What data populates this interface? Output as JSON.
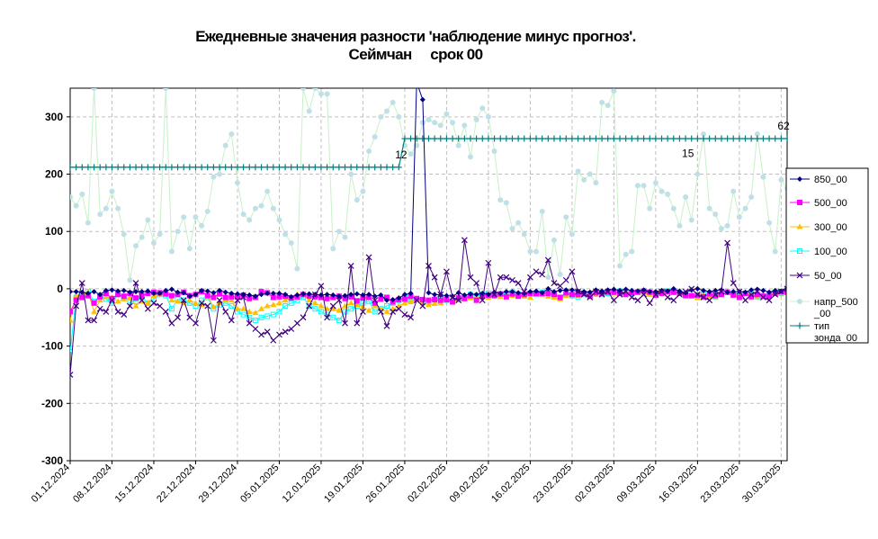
{
  "chart_data": {
    "type": "line",
    "title": "Ежедневные значения разности 'наблюдение минус прогноз'.",
    "subtitle": "Сеймчан     срок 00",
    "xlabel": "",
    "ylabel": "",
    "ylim": [
      -300,
      350
    ],
    "yticks": [
      -300,
      -200,
      -100,
      0,
      100,
      200,
      300
    ],
    "grid": true,
    "legend_position": "right",
    "x_start": "01.12.2024",
    "x_end": "31.03.2025",
    "x_ticks": [
      "01.12.2024",
      "08.12.2024",
      "15.12.2024",
      "22.12.2024",
      "29.12.2024",
      "05.01.2025",
      "12.01.2025",
      "19.01.2025",
      "26.01.2025",
      "02.02.2025",
      "09.02.2025",
      "16.02.2025",
      "23.02.2025",
      "02.03.2025",
      "09.03.2025",
      "16.03.2025",
      "23.03.2025",
      "30.03.2025"
    ],
    "annotations": [
      {
        "x": "26.01.2025",
        "y": 212,
        "text": "12"
      },
      {
        "x": "15.03.2025",
        "y": 214,
        "text": "15"
      },
      {
        "x": "31.03.2025",
        "y": 262,
        "text": "62"
      }
    ],
    "series": [
      {
        "name": "850_00",
        "color": "#000080",
        "marker": "diamond",
        "values": [
          -5,
          -5,
          -6,
          -8,
          -5,
          -10,
          -3,
          -2,
          -4,
          -3,
          -6,
          -5,
          -5,
          -4,
          -8,
          -8,
          -3,
          -1,
          -6,
          -7,
          -13,
          -10,
          -3,
          -4,
          -7,
          -3,
          -6,
          -8,
          -9,
          -10,
          -11,
          -13,
          -10,
          -8,
          -8,
          -8,
          -10,
          -14,
          -11,
          -9,
          -9,
          -10,
          -11,
          -10,
          -11,
          -13,
          -12,
          -10,
          -9,
          -11,
          -10,
          -13,
          -11,
          -20,
          -19,
          -16,
          -10,
          -8,
          360,
          330,
          -7,
          -10,
          -11,
          -12,
          -13,
          -7,
          -11,
          -9,
          -10,
          -8,
          -10,
          -6,
          -8,
          -5,
          -5,
          -7,
          -8,
          -5,
          -4,
          -7,
          0,
          -5,
          -3,
          -2,
          -2,
          -4,
          -5,
          -6,
          -2,
          -4,
          -2,
          -1,
          -3,
          -1,
          -3,
          -4,
          -2,
          -5,
          -5,
          -3,
          -4,
          0,
          -4,
          -7,
          -2,
          0,
          -3,
          -5,
          -3,
          -2,
          -6,
          -5,
          -5,
          -6,
          -2,
          -1,
          -3,
          -6,
          -3,
          -4,
          1,
          -2
        ]
      },
      {
        "name": "500_00",
        "color": "#ff00ff",
        "marker": "square",
        "values": [
          -40,
          -20,
          -15,
          -12,
          -25,
          -14,
          -8,
          -17,
          -10,
          -13,
          -8,
          -16,
          -12,
          -8,
          -6,
          -7,
          -9,
          -12,
          -10,
          -6,
          -12,
          -10,
          -5,
          -12,
          -15,
          -9,
          -15,
          -14,
          -14,
          -11,
          -17,
          -15,
          -5,
          -7,
          -15,
          -14,
          -13,
          -16,
          -14,
          -10,
          -13,
          -14,
          -15,
          -17,
          -15,
          -13,
          -17,
          -14,
          -21,
          -16,
          -15,
          -25,
          -18,
          -15,
          -23,
          -19,
          -18,
          -13,
          -17,
          -19,
          -20,
          -19,
          -20,
          -19,
          -23,
          -16,
          -17,
          -12,
          -20,
          -12,
          -11,
          -12,
          -9,
          -14,
          -9,
          -13,
          -10,
          -8,
          -8,
          -8,
          -8,
          -10,
          -15,
          -7,
          -10,
          -10,
          -8,
          -13,
          -7,
          -8,
          -6,
          -6,
          -8,
          -10,
          -7,
          -6,
          -4,
          -6,
          -11,
          -8,
          -5,
          -6,
          -8,
          -12,
          -12,
          -11,
          -14,
          -9,
          -12,
          -10,
          -6,
          -11,
          -15,
          -8,
          -14,
          -10,
          -13,
          -13,
          -8,
          -5,
          -6,
          -9
        ]
      },
      {
        "name": "300_00",
        "color": "#ffc000",
        "marker": "triangle",
        "values": [
          -55,
          -12,
          -10,
          -6,
          -40,
          -20,
          -14,
          -15,
          -22,
          -18,
          -15,
          -30,
          -22,
          -25,
          -12,
          -10,
          -8,
          -20,
          -22,
          -25,
          -20,
          -25,
          -28,
          -12,
          -32,
          -25,
          -20,
          -20,
          -35,
          -35,
          -40,
          -42,
          -35,
          -30,
          -28,
          -25,
          -20,
          -15,
          -10,
          -8,
          -20,
          -25,
          -30,
          -35,
          -35,
          -38,
          -30,
          -25,
          -28,
          -32,
          -38,
          -30,
          -35,
          -40,
          -35,
          -30,
          -25,
          -22,
          -18,
          -25,
          -28,
          -26,
          -25,
          -20,
          -22,
          -20,
          -18,
          -16,
          -15,
          -14,
          -15,
          -12,
          -14,
          -11,
          -12,
          -10,
          -12,
          -15,
          -10,
          -11,
          -13,
          -15,
          -18,
          -12,
          -10,
          -12,
          -8,
          -6,
          -10,
          -8,
          -5,
          -8,
          -6,
          -7,
          -5,
          -6,
          -8,
          -10,
          -5,
          -6,
          -4,
          -6,
          -8,
          -10,
          -12,
          -15,
          -10,
          -12,
          -14,
          -10,
          -6,
          -10,
          -12,
          -8,
          -10,
          -14,
          -12,
          -10,
          -6,
          -8,
          -5,
          -3
        ]
      },
      {
        "name": "100_00",
        "color": "#00ffff",
        "marker": "square-open",
        "values": [
          -110,
          -15,
          -10,
          -5,
          -22,
          -12,
          -18,
          -25,
          -10,
          -15,
          -20,
          -22,
          -15,
          -25,
          -18,
          -10,
          -12,
          -35,
          -18,
          -20,
          -25,
          -30,
          -20,
          -15,
          -35,
          -28,
          -25,
          -30,
          -40,
          -45,
          -50,
          -55,
          -50,
          -48,
          -45,
          -40,
          -30,
          -25,
          -20,
          -15,
          -30,
          -35,
          -40,
          -45,
          -50,
          -55,
          -40,
          -35,
          -30,
          -25,
          -22,
          -40,
          -35,
          -30,
          -25,
          -20,
          -15,
          -22,
          -18,
          -20,
          -22,
          -18,
          -15,
          -20,
          -22,
          -18,
          -15,
          -10,
          -12,
          -10,
          -8,
          -12,
          -10,
          -8,
          -6,
          -10,
          -12,
          -8,
          -10,
          -6,
          -8,
          -10,
          -15,
          -10,
          -12,
          -14,
          -10,
          -8,
          -6,
          -10,
          -8,
          -6,
          -4,
          -6,
          -8,
          -5,
          -4,
          -6,
          -8,
          -5,
          -4,
          -6,
          -8,
          -10,
          -12,
          -15,
          -10,
          -12,
          -14,
          -10,
          -6,
          -10,
          -12,
          -8,
          -10,
          -14,
          -12,
          -10,
          -6,
          -8,
          -5,
          -3
        ]
      },
      {
        "name": "50_00",
        "color": "#400080",
        "marker": "x",
        "values": [
          -150,
          -30,
          10,
          -55,
          -55,
          -35,
          -40,
          -20,
          -40,
          -45,
          -30,
          10,
          -20,
          -35,
          -25,
          -30,
          -40,
          -60,
          -50,
          -20,
          -50,
          -60,
          -25,
          -30,
          -90,
          -20,
          -40,
          -55,
          -20,
          -15,
          -60,
          -70,
          -80,
          -75,
          -90,
          -80,
          -75,
          -70,
          -60,
          -50,
          -30,
          -10,
          5,
          -50,
          -30,
          -20,
          -60,
          40,
          -60,
          -40,
          55,
          -20,
          -40,
          -65,
          -40,
          -35,
          -45,
          -50,
          -20,
          -30,
          40,
          20,
          -10,
          30,
          -15,
          -20,
          85,
          20,
          10,
          -20,
          45,
          -10,
          20,
          20,
          15,
          10,
          -5,
          20,
          30,
          25,
          50,
          10,
          5,
          15,
          30,
          -5,
          -10,
          -15,
          -5,
          -10,
          -5,
          -20,
          -10,
          -5,
          -15,
          -20,
          -10,
          -25,
          -10,
          -5,
          -15,
          -20,
          -10,
          -5,
          0,
          -10,
          -15,
          -20,
          -10,
          -5,
          80,
          10,
          -5,
          -20,
          -10,
          -5,
          -15,
          -20,
          -10,
          -5,
          0,
          -10
        ]
      },
      {
        "name": "напр_500_00",
        "color": "#c0e0e8",
        "marker": "circle",
        "values": [
          160,
          145,
          165,
          115,
          350,
          130,
          140,
          170,
          140,
          95,
          15,
          75,
          90,
          120,
          80,
          95,
          350,
          65,
          100,
          125,
          70,
          125,
          110,
          135,
          195,
          200,
          250,
          270,
          185,
          130,
          120,
          140,
          145,
          170,
          140,
          120,
          95,
          80,
          35,
          350,
          310,
          350,
          340,
          340,
          70,
          100,
          90,
          200,
          155,
          170,
          240,
          265,
          300,
          310,
          325,
          300,
          250,
          235,
          250,
          290,
          295,
          290,
          285,
          305,
          290,
          250,
          285,
          230,
          295,
          315,
          300,
          240,
          155,
          150,
          105,
          115,
          95,
          65,
          65,
          135,
          20,
          85,
          25,
          125,
          95,
          205,
          190,
          200,
          185,
          325,
          320,
          345,
          40,
          60,
          65,
          180,
          180,
          140,
          185,
          170,
          165,
          140,
          110,
          160,
          120,
          200,
          270,
          140,
          130,
          105,
          110,
          170,
          125,
          140,
          160,
          270,
          195,
          115,
          65,
          190,
          175,
          200,
          210
        ]
      },
      {
        "name": "тип зонда_00",
        "color": "#008080",
        "marker": "plus",
        "values": [
          212,
          212,
          212,
          212,
          212,
          212,
          212,
          212,
          212,
          212,
          212,
          212,
          212,
          212,
          212,
          212,
          212,
          212,
          212,
          212,
          212,
          212,
          212,
          212,
          212,
          212,
          212,
          212,
          212,
          212,
          212,
          212,
          212,
          212,
          212,
          212,
          212,
          212,
          212,
          212,
          212,
          212,
          212,
          212,
          212,
          212,
          212,
          212,
          212,
          212,
          212,
          212,
          212,
          212,
          212,
          212,
          262,
          262,
          262,
          262,
          262,
          262,
          262,
          262,
          262,
          262,
          262,
          262,
          262,
          262,
          262,
          262,
          262,
          262,
          262,
          262,
          262,
          262,
          262,
          262,
          262,
          262,
          262,
          262,
          262,
          262,
          262,
          262,
          262,
          262,
          262,
          262,
          262,
          262,
          262,
          262,
          262,
          262,
          262,
          262,
          262,
          262,
          262,
          262,
          262,
          262,
          262,
          262,
          262,
          262,
          262,
          262,
          262,
          262,
          262,
          262,
          262,
          262,
          262,
          262,
          262
        ]
      }
    ]
  }
}
